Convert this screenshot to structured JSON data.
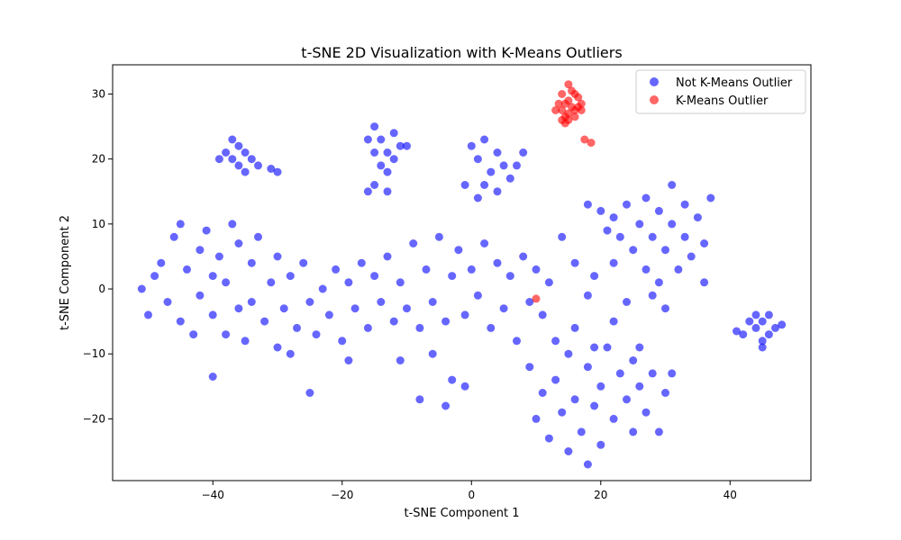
{
  "chart_data": {
    "type": "scatter",
    "title": "t-SNE 2D Visualization with K-Means Outliers",
    "xlabel": "t-SNE Component 1",
    "ylabel": "t-SNE Component 2",
    "xlim": [
      -55.5,
      52.5
    ],
    "ylim": [
      -29.5,
      34.5
    ],
    "xticks": [
      -40,
      -20,
      0,
      20,
      40
    ],
    "yticks": [
      -20,
      -10,
      0,
      10,
      20,
      30
    ],
    "grid": false,
    "legend_position": "upper right",
    "series": [
      {
        "name": "Not K-Means Outlier",
        "color": "#0000ff",
        "alpha": 0.6,
        "points": [
          [
            -51,
            0
          ],
          [
            -50,
            -4
          ],
          [
            -49,
            2
          ],
          [
            -48,
            4
          ],
          [
            -47,
            -2
          ],
          [
            -46,
            8
          ],
          [
            -45,
            10
          ],
          [
            -45,
            -5
          ],
          [
            -44,
            3
          ],
          [
            -43,
            -7
          ],
          [
            -42,
            6
          ],
          [
            -42,
            -1
          ],
          [
            -41,
            9
          ],
          [
            -40,
            -4
          ],
          [
            -40,
            2
          ],
          [
            -39,
            5
          ],
          [
            -38,
            -7
          ],
          [
            -38,
            1
          ],
          [
            -37,
            10
          ],
          [
            -36,
            -3
          ],
          [
            -36,
            7
          ],
          [
            -35,
            -8
          ],
          [
            -34,
            4
          ],
          [
            -34,
            -2
          ],
          [
            -33,
            8
          ],
          [
            -32,
            -5
          ],
          [
            -31,
            1
          ],
          [
            -30,
            -9
          ],
          [
            -30,
            5
          ],
          [
            -29,
            -3
          ],
          [
            -28,
            2
          ],
          [
            -28,
            -10
          ],
          [
            -27,
            -6
          ],
          [
            -26,
            4
          ],
          [
            -25,
            -2
          ],
          [
            -24,
            -7
          ],
          [
            -23,
            0
          ],
          [
            -22,
            -4
          ],
          [
            -21,
            3
          ],
          [
            -20,
            -8
          ],
          [
            -19,
            1
          ],
          [
            -18,
            -3
          ],
          [
            -17,
            4
          ],
          [
            -16,
            -6
          ],
          [
            -15,
            2
          ],
          [
            -14,
            -2
          ],
          [
            -13,
            5
          ],
          [
            -12,
            -5
          ],
          [
            -11,
            1
          ],
          [
            -10,
            -3
          ],
          [
            -9,
            7
          ],
          [
            -8,
            -6
          ],
          [
            -7,
            3
          ],
          [
            -6,
            -2
          ],
          [
            -5,
            8
          ],
          [
            -4,
            -5
          ],
          [
            -3,
            2
          ],
          [
            -2,
            6
          ],
          [
            -1,
            -4
          ],
          [
            0,
            3
          ],
          [
            1,
            -1
          ],
          [
            2,
            7
          ],
          [
            3,
            -6
          ],
          [
            4,
            4
          ],
          [
            5,
            -3
          ],
          [
            6,
            2
          ],
          [
            7,
            -8
          ],
          [
            8,
            5
          ],
          [
            9,
            -2
          ],
          [
            10,
            3
          ],
          [
            11,
            -4
          ],
          [
            12,
            1
          ],
          [
            -40,
            -13.5
          ],
          [
            -25,
            -16
          ],
          [
            -19,
            -11
          ],
          [
            -11,
            -11
          ],
          [
            -8,
            -17
          ],
          [
            -6,
            -10
          ],
          [
            -4,
            -18
          ],
          [
            -3,
            -14
          ],
          [
            -1,
            -15
          ],
          [
            -37,
            23
          ],
          [
            -37,
            20
          ],
          [
            -36,
            22
          ],
          [
            -35,
            21
          ],
          [
            -35,
            18
          ],
          [
            -34,
            20
          ],
          [
            -33,
            19
          ],
          [
            -38,
            21
          ],
          [
            -39,
            20
          ],
          [
            -36,
            19
          ],
          [
            -30,
            18
          ],
          [
            -31,
            18.5
          ],
          [
            -15,
            25
          ],
          [
            -14,
            23
          ],
          [
            -13,
            21
          ],
          [
            -13,
            18
          ],
          [
            -12,
            24
          ],
          [
            -12,
            20
          ],
          [
            -11,
            22
          ],
          [
            -15,
            21
          ],
          [
            -14,
            19
          ],
          [
            -16,
            23
          ],
          [
            -10,
            22
          ],
          [
            -15,
            16
          ],
          [
            -13,
            15
          ],
          [
            -16,
            15
          ],
          [
            0,
            22
          ],
          [
            1,
            20
          ],
          [
            2,
            23
          ],
          [
            3,
            18
          ],
          [
            4,
            21
          ],
          [
            5,
            19
          ],
          [
            2,
            16
          ],
          [
            4,
            15
          ],
          [
            6,
            17
          ],
          [
            7,
            19
          ],
          [
            1,
            14
          ],
          [
            -1,
            16
          ],
          [
            8,
            21
          ],
          [
            18,
            13
          ],
          [
            20,
            12
          ],
          [
            21,
            9
          ],
          [
            22,
            11
          ],
          [
            23,
            8
          ],
          [
            24,
            13
          ],
          [
            25,
            6
          ],
          [
            26,
            10
          ],
          [
            27,
            14
          ],
          [
            27,
            3
          ],
          [
            28,
            8
          ],
          [
            29,
            12
          ],
          [
            29,
            1
          ],
          [
            30,
            6
          ],
          [
            31,
            10
          ],
          [
            31,
            16
          ],
          [
            32,
            3
          ],
          [
            33,
            8
          ],
          [
            33,
            13
          ],
          [
            34,
            5
          ],
          [
            35,
            11
          ],
          [
            36,
            7
          ],
          [
            37,
            14
          ],
          [
            36,
            1
          ],
          [
            30,
            -3
          ],
          [
            28,
            -1
          ],
          [
            19,
            2
          ],
          [
            22,
            4
          ],
          [
            24,
            -2
          ],
          [
            16,
            4
          ],
          [
            18,
            -1
          ],
          [
            14,
            8
          ],
          [
            9,
            -12
          ],
          [
            10,
            -20
          ],
          [
            11,
            -16
          ],
          [
            12,
            -23
          ],
          [
            13,
            -14
          ],
          [
            14,
            -19
          ],
          [
            15,
            -10
          ],
          [
            15,
            -25
          ],
          [
            16,
            -17
          ],
          [
            17,
            -22
          ],
          [
            18,
            -12
          ],
          [
            18,
            -27
          ],
          [
            19,
            -18
          ],
          [
            20,
            -15
          ],
          [
            20,
            -24
          ],
          [
            21,
            -9
          ],
          [
            22,
            -20
          ],
          [
            23,
            -13
          ],
          [
            24,
            -17
          ],
          [
            25,
            -11
          ],
          [
            25,
            -22
          ],
          [
            26,
            -15
          ],
          [
            27,
            -19
          ],
          [
            28,
            -13
          ],
          [
            29,
            -22
          ],
          [
            30,
            -16
          ],
          [
            31,
            -13
          ],
          [
            13,
            -8
          ],
          [
            16,
            -6
          ],
          [
            19,
            -9
          ],
          [
            22,
            -5
          ],
          [
            26,
            -9
          ],
          [
            43,
            -5
          ],
          [
            44,
            -6
          ],
          [
            44,
            -4
          ],
          [
            45,
            -8
          ],
          [
            45,
            -5
          ],
          [
            46,
            -7
          ],
          [
            46,
            -4
          ],
          [
            47,
            -6
          ],
          [
            48,
            -5.5
          ],
          [
            42,
            -7
          ],
          [
            41,
            -6.5
          ],
          [
            45,
            -9
          ]
        ]
      },
      {
        "name": "K-Means Outlier",
        "color": "#ff0000",
        "alpha": 0.6,
        "points": [
          [
            15,
            31.5
          ],
          [
            15.5,
            30.5
          ],
          [
            16,
            30
          ],
          [
            14,
            30
          ],
          [
            16.5,
            29.5
          ],
          [
            15,
            29
          ],
          [
            14.5,
            28.5
          ],
          [
            16.5,
            28
          ],
          [
            13.5,
            28.5
          ],
          [
            15.5,
            28
          ],
          [
            17,
            28.5
          ],
          [
            14,
            27.5
          ],
          [
            16,
            27.5
          ],
          [
            13,
            27.5
          ],
          [
            15,
            27
          ],
          [
            17,
            27.5
          ],
          [
            16,
            26.5
          ],
          [
            14.5,
            26.5
          ],
          [
            14,
            26
          ],
          [
            15,
            26
          ],
          [
            14.5,
            25.5
          ],
          [
            17.5,
            23
          ],
          [
            18.5,
            22.5
          ],
          [
            10,
            -1.5
          ]
        ]
      }
    ]
  }
}
